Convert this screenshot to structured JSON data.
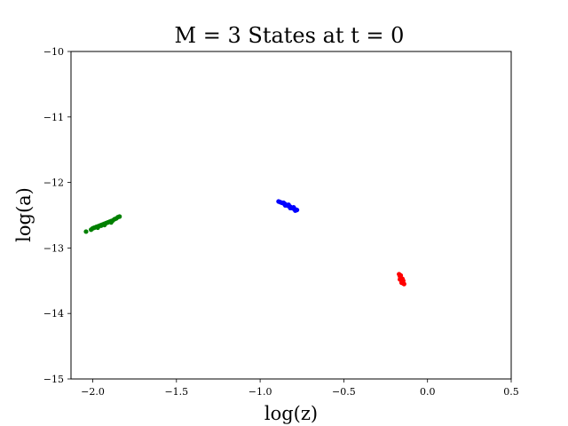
{
  "chart_data": {
    "type": "scatter",
    "title": "M = 3 States at t = 0",
    "xlabel": "log(z)",
    "ylabel": "log(a)",
    "xlim": [
      -2.13,
      0.5
    ],
    "ylim": [
      -15,
      -10
    ],
    "xticks": [
      -2.0,
      -1.5,
      -1.0,
      -0.5,
      0.0,
      0.5
    ],
    "xtick_labels": [
      "−2.0",
      "−1.5",
      "−1.0",
      "−0.5",
      "0.0",
      "0.5"
    ],
    "yticks": [
      -15,
      -14,
      -13,
      -12,
      -11,
      -10
    ],
    "ytick_labels": [
      "−15",
      "−14",
      "−13",
      "−12",
      "−11",
      "−10"
    ],
    "grid": false,
    "series": [
      {
        "color": "#008000",
        "points": [
          [
            -2.04,
            -12.75
          ],
          [
            -2.01,
            -12.72
          ],
          [
            -2.0,
            -12.7
          ],
          [
            -1.99,
            -12.69
          ],
          [
            -1.98,
            -12.68
          ],
          [
            -1.97,
            -12.67
          ],
          [
            -1.96,
            -12.66
          ],
          [
            -1.95,
            -12.65
          ],
          [
            -1.94,
            -12.64
          ],
          [
            -1.93,
            -12.63
          ],
          [
            -1.92,
            -12.62
          ],
          [
            -1.91,
            -12.61
          ],
          [
            -1.9,
            -12.6
          ],
          [
            -1.89,
            -12.59
          ],
          [
            -1.88,
            -12.58
          ],
          [
            -1.87,
            -12.56
          ],
          [
            -1.86,
            -12.55
          ],
          [
            -1.85,
            -12.53
          ],
          [
            -1.84,
            -12.52
          ],
          [
            -1.97,
            -12.69
          ],
          [
            -1.93,
            -12.65
          ],
          [
            -1.89,
            -12.61
          ],
          [
            -1.95,
            -12.66
          ]
        ]
      },
      {
        "color": "#0000ff",
        "points": [
          [
            -0.89,
            -12.29
          ],
          [
            -0.88,
            -12.3
          ],
          [
            -0.87,
            -12.31
          ],
          [
            -0.86,
            -12.32
          ],
          [
            -0.85,
            -12.33
          ],
          [
            -0.84,
            -12.35
          ],
          [
            -0.83,
            -12.36
          ],
          [
            -0.82,
            -12.37
          ],
          [
            -0.81,
            -12.39
          ],
          [
            -0.8,
            -12.4
          ],
          [
            -0.79,
            -12.41
          ],
          [
            -0.78,
            -12.42
          ],
          [
            -0.86,
            -12.31
          ],
          [
            -0.83,
            -12.34
          ],
          [
            -0.8,
            -12.38
          ],
          [
            -0.85,
            -12.35
          ],
          [
            -0.82,
            -12.39
          ],
          [
            -0.79,
            -12.43
          ]
        ]
      },
      {
        "color": "#ff0000",
        "points": [
          [
            -0.17,
            -13.4
          ],
          [
            -0.165,
            -13.43
          ],
          [
            -0.16,
            -13.46
          ],
          [
            -0.155,
            -13.49
          ],
          [
            -0.15,
            -13.52
          ],
          [
            -0.145,
            -13.54
          ],
          [
            -0.16,
            -13.42
          ],
          [
            -0.15,
            -13.47
          ],
          [
            -0.145,
            -13.5
          ],
          [
            -0.165,
            -13.48
          ],
          [
            -0.155,
            -13.53
          ],
          [
            -0.14,
            -13.55
          ]
        ]
      }
    ]
  }
}
